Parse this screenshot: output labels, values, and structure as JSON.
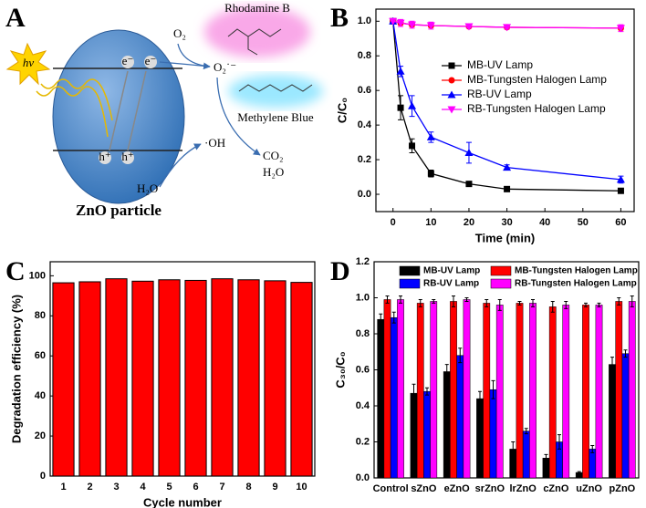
{
  "panel_labels": [
    "A",
    "B",
    "C",
    "D"
  ],
  "diagram": {
    "light": "hv",
    "electrons": [
      "e⁻",
      "e⁻"
    ],
    "holes": [
      "h⁺",
      "h⁺"
    ],
    "o2": "O₂",
    "superoxide": "O₂˙⁻",
    "hydroxyl": "·OH",
    "water_in": "H₂O",
    "co2": "CO₂",
    "water_out": "H₂O",
    "particle": "ZnO particle",
    "dye1": "Rhodamine B",
    "dye2": "Methylene Blue"
  },
  "chart_data": [
    {
      "type": "line",
      "x_label": "Time (min)",
      "y_label": "C/C₀",
      "x": [
        0,
        2,
        5,
        10,
        20,
        30,
        60
      ],
      "xlim": [
        -4.5,
        63.5
      ],
      "xticks": [
        0,
        10,
        20,
        30,
        40,
        50,
        60
      ],
      "ylim": [
        -0.1,
        1.07
      ],
      "yticks": [
        {
          "value": 0,
          "label": "0.0"
        },
        0.2,
        0.4,
        0.6,
        0.8,
        {
          "value": 1,
          "label": "1.0"
        }
      ],
      "legend": "center right",
      "series": [
        {
          "name": "MB-UV Lamp",
          "color": "#000000",
          "marker": "square",
          "values": [
            1.0,
            0.5,
            0.28,
            0.12,
            0.06,
            0.03,
            0.02
          ],
          "errors": [
            0,
            0.07,
            0.04,
            0.02,
            0.01,
            0.01,
            0.01
          ]
        },
        {
          "name": "MB-Tungsten Halogen Lamp",
          "color": "#ff0000",
          "marker": "circle",
          "values": [
            1.0,
            0.99,
            0.98,
            0.975,
            0.97,
            0.965,
            0.96
          ],
          "errors": [
            0,
            0.01,
            0.01,
            0.01,
            0.01,
            0.01,
            0.01
          ]
        },
        {
          "name": "RB-UV Lamp",
          "color": "#0000ff",
          "marker": "triangle-up",
          "values": [
            1.0,
            0.71,
            0.51,
            0.33,
            0.24,
            0.155,
            0.085
          ],
          "errors": [
            0,
            0.03,
            0.06,
            0.03,
            0.06,
            0.015,
            0.02
          ]
        },
        {
          "name": "RB-Tungsten Halogen Lamp",
          "color": "#ff00ff",
          "marker": "triangle-down",
          "values": [
            1.0,
            0.99,
            0.98,
            0.975,
            0.97,
            0.965,
            0.96
          ],
          "errors": [
            0,
            0.02,
            0.02,
            0.02,
            0.01,
            0.01,
            0.02
          ]
        }
      ]
    },
    {
      "type": "bar",
      "x_label": "Cycle number",
      "y_label": "Degradation efficiency (%)",
      "categories": [
        "1",
        "2",
        "3",
        "4",
        "5",
        "6",
        "7",
        "8",
        "9",
        "10"
      ],
      "values": [
        96.5,
        97,
        98.5,
        97.3,
        98,
        97.7,
        98.5,
        98,
        97.5,
        96.7
      ],
      "color": "#ff0000",
      "edge_color": "#000000",
      "ylim": [
        0,
        107
      ],
      "yticks": [
        0,
        20,
        40,
        60,
        80,
        100
      ]
    },
    {
      "type": "bar",
      "y_label": "C₃₀/C₀",
      "categories": [
        "Control",
        "sZnO",
        "eZnO",
        "srZnO",
        "lrZnO",
        "cZnO",
        "uZnO",
        "pZnO"
      ],
      "ylim": [
        0,
        1.2
      ],
      "yticks": [
        {
          "value": 0,
          "label": "0.0"
        },
        0.2,
        0.4,
        0.6,
        0.8,
        {
          "value": 1,
          "label": "1.0"
        },
        1.2
      ],
      "legend": "upper center",
      "edge_color": "#000000",
      "series": [
        {
          "name": "MB-UV Lamp",
          "color": "#000000",
          "values": [
            0.88,
            0.47,
            0.59,
            0.44,
            0.16,
            0.11,
            0.03,
            0.63
          ],
          "errors": [
            0.03,
            0.05,
            0.04,
            0.04,
            0.04,
            0.02,
            0.005,
            0.04
          ]
        },
        {
          "name": "MB-Tungsten Halogen Lamp",
          "color": "#ff0000",
          "values": [
            0.99,
            0.97,
            0.98,
            0.97,
            0.97,
            0.95,
            0.96,
            0.98
          ],
          "errors": [
            0.02,
            0.02,
            0.03,
            0.02,
            0.01,
            0.03,
            0.01,
            0.02
          ]
        },
        {
          "name": "RB-UV Lamp",
          "color": "#0000ff",
          "values": [
            0.89,
            0.48,
            0.68,
            0.49,
            0.26,
            0.2,
            0.16,
            0.69
          ],
          "errors": [
            0.03,
            0.02,
            0.04,
            0.05,
            0.015,
            0.04,
            0.02,
            0.02
          ]
        },
        {
          "name": "RB-Tungsten Halogen Lamp",
          "color": "#ff00ff",
          "values": [
            0.99,
            0.98,
            0.99,
            0.96,
            0.97,
            0.96,
            0.96,
            0.98
          ],
          "errors": [
            0.02,
            0.01,
            0.01,
            0.03,
            0.02,
            0.02,
            0.01,
            0.03
          ]
        }
      ]
    }
  ]
}
